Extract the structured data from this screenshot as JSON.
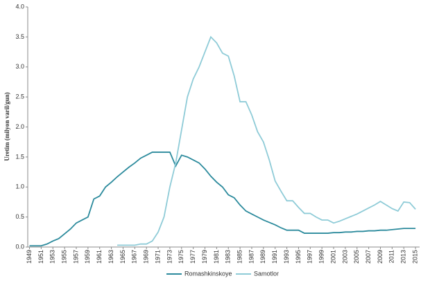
{
  "chart_data": {
    "type": "line",
    "y_label": "Uretim (milyon varil/gun)",
    "x": [
      1949,
      1950,
      1951,
      1952,
      1953,
      1954,
      1955,
      1956,
      1957,
      1958,
      1959,
      1960,
      1961,
      1962,
      1963,
      1964,
      1965,
      1966,
      1967,
      1968,
      1969,
      1970,
      1971,
      1972,
      1973,
      1974,
      1975,
      1976,
      1977,
      1978,
      1979,
      1980,
      1981,
      1982,
      1983,
      1984,
      1985,
      1986,
      1987,
      1988,
      1989,
      1990,
      1991,
      1992,
      1993,
      1994,
      1995,
      1996,
      1997,
      1998,
      1999,
      2000,
      2001,
      2002,
      2003,
      2004,
      2005,
      2006,
      2007,
      2008,
      2009,
      2010,
      2011,
      2012,
      2013,
      2014,
      2015
    ],
    "series": [
      {
        "name": "Romashkinskoye",
        "color": "#2b8a9c",
        "values": [
          0.02,
          0.02,
          0.02,
          0.05,
          0.1,
          0.14,
          0.22,
          0.3,
          0.4,
          0.45,
          0.5,
          0.8,
          0.85,
          1.0,
          1.08,
          1.17,
          1.25,
          1.33,
          1.4,
          1.48,
          1.53,
          1.58,
          1.58,
          1.58,
          1.58,
          1.35,
          1.53,
          1.5,
          1.45,
          1.4,
          1.3,
          1.18,
          1.08,
          1.0,
          0.87,
          0.82,
          0.7,
          0.6,
          0.55,
          0.5,
          0.45,
          0.41,
          0.37,
          0.32,
          0.28,
          0.28,
          0.28,
          0.23,
          0.23,
          0.23,
          0.23,
          0.23,
          0.24,
          0.24,
          0.25,
          0.25,
          0.26,
          0.26,
          0.27,
          0.27,
          0.28,
          0.28,
          0.29,
          0.3,
          0.31,
          0.31,
          0.31
        ]
      },
      {
        "name": "Samotlor",
        "color": "#8ecbd7",
        "values": [
          null,
          null,
          null,
          null,
          null,
          null,
          null,
          null,
          null,
          null,
          null,
          null,
          null,
          null,
          null,
          0.03,
          0.03,
          0.03,
          0.03,
          0.05,
          0.05,
          0.1,
          0.25,
          0.5,
          1.0,
          1.4,
          1.95,
          2.5,
          2.8,
          3.0,
          3.25,
          3.5,
          3.4,
          3.23,
          3.18,
          2.85,
          2.42,
          2.42,
          2.2,
          1.92,
          1.75,
          1.45,
          1.1,
          0.93,
          0.77,
          0.77,
          0.66,
          0.56,
          0.56,
          0.5,
          0.45,
          0.45,
          0.4,
          0.43,
          0.47,
          0.51,
          0.55,
          0.6,
          0.65,
          0.7,
          0.76,
          0.7,
          0.64,
          0.6,
          0.75,
          0.74,
          0.63
        ]
      }
    ],
    "xlim": [
      1948.7,
      2015.7
    ],
    "xticks": [
      1949,
      1951,
      1953,
      1955,
      1957,
      1959,
      1961,
      1963,
      1965,
      1967,
      1969,
      1971,
      1973,
      1975,
      1977,
      1979,
      1981,
      1983,
      1985,
      1987,
      1989,
      1991,
      1993,
      1995,
      1997,
      1999,
      2001,
      2003,
      2005,
      2007,
      2009,
      2011,
      2013,
      2015
    ],
    "ylim": [
      0,
      4
    ],
    "yticks": [
      {
        "value": 0,
        "label": "0.0"
      },
      {
        "value": 0.5,
        "label": "0.5"
      },
      {
        "value": 1,
        "label": "1.0"
      },
      {
        "value": 1.5,
        "label": "1.5"
      },
      {
        "value": 2,
        "label": "2.0"
      },
      {
        "value": 2.5,
        "label": "2.5"
      },
      {
        "value": 3,
        "label": "3.0"
      },
      {
        "value": 3.5,
        "label": "3.5"
      },
      {
        "value": 4,
        "label": "4.0"
      }
    ],
    "grid": false,
    "legend": "bottom"
  }
}
